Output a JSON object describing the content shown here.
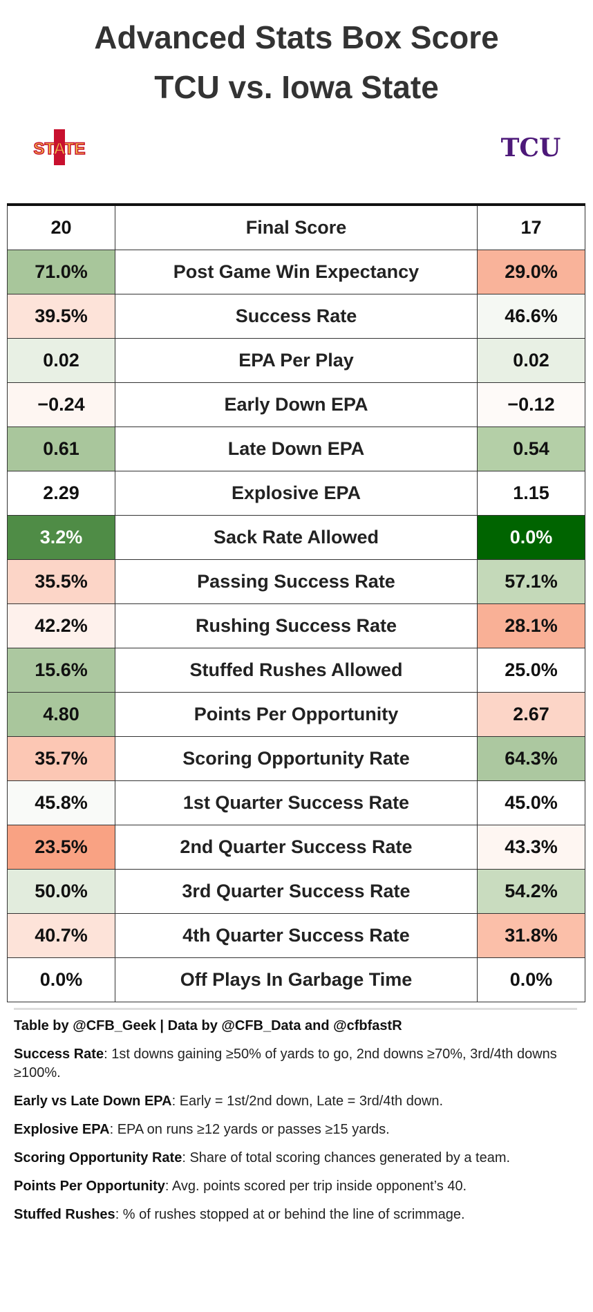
{
  "title": [
    "Advanced Stats Box Score",
    "TCU vs. Iowa State"
  ],
  "logos": {
    "left": "STATE",
    "right": "TCU",
    "left_color": "#f1be48",
    "left_outline": "#c8102e",
    "right_color": "#4d1979"
  },
  "table": {
    "rows": [
      {
        "left": "20",
        "label": "Final Score",
        "right": "17",
        "left_color": "#ffffff",
        "right_color": "#ffffff"
      },
      {
        "left": "71.0%",
        "label": "Post Game Win Expectancy",
        "right": "29.0%",
        "left_color": "#a8c69b",
        "right_color": "#f9b39a"
      },
      {
        "left": "39.5%",
        "label": "Success Rate",
        "right": "46.6%",
        "left_color": "#fde3d9",
        "right_color": "#f5f8f3"
      },
      {
        "left": "0.02",
        "label": "EPA Per Play",
        "right": "0.02",
        "left_color": "#e8f0e4",
        "right_color": "#e8f0e4"
      },
      {
        "left": "−0.24",
        "label": "Early Down EPA",
        "right": "−0.12",
        "left_color": "#fef6f2",
        "right_color": "#fefaf8"
      },
      {
        "left": "0.61",
        "label": "Late Down EPA",
        "right": "0.54",
        "left_color": "#a9c69c",
        "right_color": "#b4cfa7"
      },
      {
        "left": "2.29",
        "label": "Explosive EPA",
        "right": "1.15",
        "left_color": "#ffffff",
        "right_color": "#ffffff"
      },
      {
        "left": "3.2%",
        "label": "Sack Rate Allowed",
        "right": "0.0%",
        "left_color": "#4f8c46",
        "right_color": "#006400"
      },
      {
        "left": "35.5%",
        "label": "Passing Success Rate",
        "right": "57.1%",
        "left_color": "#fcd5c7",
        "right_color": "#c4d9b9"
      },
      {
        "left": "42.2%",
        "label": "Rushing Success Rate",
        "right": "28.1%",
        "left_color": "#fef1ec",
        "right_color": "#f9b096"
      },
      {
        "left": "15.6%",
        "label": "Stuffed Rushes Allowed",
        "right": "25.0%",
        "left_color": "#acc8a0",
        "right_color": "#ffffff"
      },
      {
        "left": "4.80",
        "label": "Points Per Opportunity",
        "right": "2.67",
        "left_color": "#a9c69c",
        "right_color": "#fcd5c7"
      },
      {
        "left": "35.7%",
        "label": "Scoring Opportunity Rate",
        "right": "64.3%",
        "left_color": "#fcc7b4",
        "right_color": "#acc8a0"
      },
      {
        "left": "45.8%",
        "label": "1st Quarter Success Rate",
        "right": "45.0%",
        "left_color": "#f9faf8",
        "right_color": "#ffffff"
      },
      {
        "left": "23.5%",
        "label": "2nd Quarter Success Rate",
        "right": "43.3%",
        "left_color": "#f9a283",
        "right_color": "#fef6f2"
      },
      {
        "left": "50.0%",
        "label": "3rd Quarter Success Rate",
        "right": "54.2%",
        "left_color": "#e2ecdd",
        "right_color": "#c9dcbf"
      },
      {
        "left": "40.7%",
        "label": "4th Quarter Success Rate",
        "right": "31.8%",
        "left_color": "#fde3d9",
        "right_color": "#fbbfa9"
      },
      {
        "left": "0.0%",
        "label": "Off Plays In Garbage Time",
        "right": "0.0%",
        "left_color": "#ffffff",
        "right_color": "#ffffff"
      }
    ]
  },
  "footer": {
    "credit": "Table by @CFB_Geek | Data by @CFB_Data and @cfbfastR",
    "notes": [
      {
        "term": "Success Rate",
        "text": ": 1st downs gaining ≥50% of yards to go, 2nd downs ≥70%, 3rd/4th downs ≥100%."
      },
      {
        "term": "Early vs Late Down EPA",
        "text": ": Early = 1st/2nd down, Late = 3rd/4th down."
      },
      {
        "term": "Explosive EPA",
        "text": ": EPA on runs ≥12 yards or passes ≥15 yards."
      },
      {
        "term": "Scoring Opportunity Rate",
        "text": ": Share of total scoring chances generated by a team."
      },
      {
        "term": "Points Per Opportunity",
        "text": ": Avg. points scored per trip inside opponent’s 40."
      },
      {
        "term": "Stuffed Rushes",
        "text": ": % of rushes stopped at or behind the line of scrimmage."
      }
    ]
  }
}
